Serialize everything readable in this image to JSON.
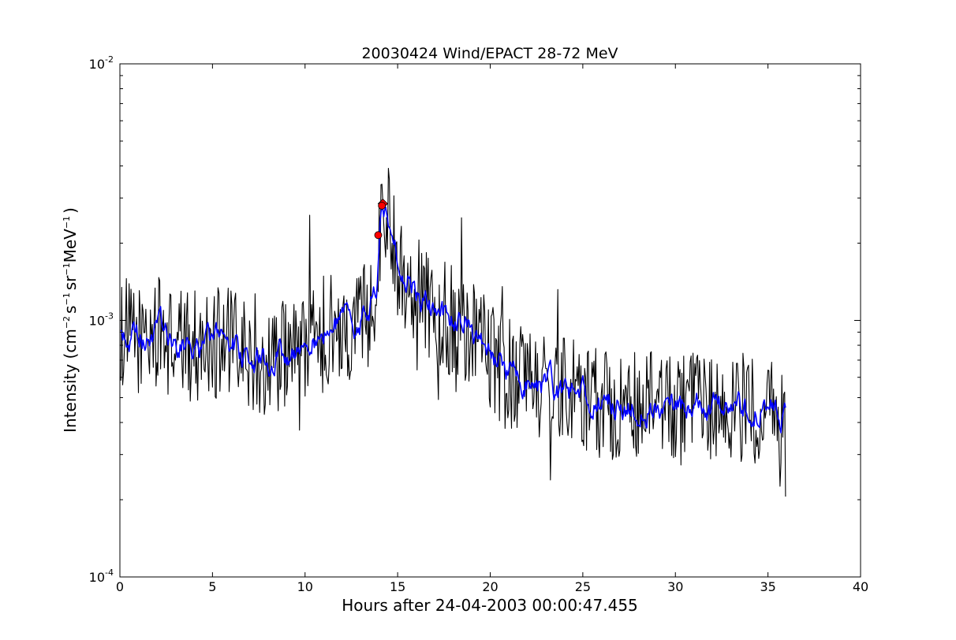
{
  "chart_data": {
    "type": "line",
    "title": "20030424 Wind/EPACT 28-72 MeV",
    "xlabel": "Hours after 24-04-2003 00:00:47.455",
    "ylabel": {
      "prefix": "Intensity (cm",
      "exp1": "−2",
      "mid1": "s",
      "exp2": "−1",
      "mid2": "sr",
      "exp3": "−1",
      "mid3": "MeV",
      "exp4": "−1",
      "suffix": ")"
    },
    "xlim": [
      0,
      40
    ],
    "ylim": [
      0.0001,
      0.01
    ],
    "yscale": "log",
    "grid": false,
    "x_ticks": [
      "0",
      "5",
      "10",
      "15",
      "20",
      "25",
      "30",
      "35",
      "40"
    ],
    "y_ticks": [
      {
        "base": "10",
        "exp": "-4",
        "value": 0.0001
      },
      {
        "base": "10",
        "exp": "-3",
        "value": 0.001
      },
      {
        "base": "10",
        "exp": "-2",
        "value": 0.01
      }
    ],
    "series": [
      {
        "color": "#000000",
        "style": "raw",
        "anchors": [
          [
            0,
            0.0009
          ],
          [
            1,
            0.00085
          ],
          [
            2,
            0.0009
          ],
          [
            3,
            0.0008
          ],
          [
            4,
            0.0008
          ],
          [
            5,
            0.00082
          ],
          [
            6,
            0.00082
          ],
          [
            7,
            0.0007
          ],
          [
            8,
            0.0007
          ],
          [
            9,
            0.00075
          ],
          [
            10,
            0.0008
          ],
          [
            11,
            0.0009
          ],
          [
            12,
            0.00095
          ],
          [
            13,
            0.001
          ],
          [
            13.5,
            0.0011
          ],
          [
            13.9,
            0.0015
          ],
          [
            14.1,
            0.0026
          ],
          [
            14.3,
            0.0028
          ],
          [
            14.6,
            0.0022
          ],
          [
            15,
            0.0017
          ],
          [
            15.5,
            0.0015
          ],
          [
            16,
            0.0013
          ],
          [
            17,
            0.0011
          ],
          [
            18,
            0.001
          ],
          [
            19,
            0.0009
          ],
          [
            20,
            0.00075
          ],
          [
            21,
            0.0006
          ],
          [
            22,
            0.0006
          ],
          [
            23,
            0.00055
          ],
          [
            24,
            0.00052
          ],
          [
            25,
            0.0005
          ],
          [
            26,
            0.00048
          ],
          [
            27,
            0.00047
          ],
          [
            28,
            0.00046
          ],
          [
            30,
            0.00045
          ],
          [
            32,
            0.00045
          ],
          [
            34,
            0.00045
          ],
          [
            35,
            0.00045
          ],
          [
            36,
            0.0004
          ]
        ],
        "noise_dex": 0.22,
        "floor": 0.000175,
        "x_start": 0.05,
        "x_end": 35.95,
        "step": 0.05
      },
      {
        "color": "#0000ff",
        "style": "smoothed",
        "anchors": [
          [
            0,
            0.0009
          ],
          [
            1,
            0.00085
          ],
          [
            2,
            0.0009
          ],
          [
            3,
            0.0008
          ],
          [
            4,
            0.0008
          ],
          [
            5,
            0.00082
          ],
          [
            6,
            0.00082
          ],
          [
            7,
            0.0007
          ],
          [
            8,
            0.0007
          ],
          [
            9,
            0.00075
          ],
          [
            10,
            0.0008
          ],
          [
            11,
            0.0009
          ],
          [
            12,
            0.00095
          ],
          [
            13,
            0.001
          ],
          [
            13.5,
            0.0011
          ],
          [
            13.9,
            0.0015
          ],
          [
            14.1,
            0.0026
          ],
          [
            14.3,
            0.0028
          ],
          [
            14.6,
            0.0022
          ],
          [
            15,
            0.0017
          ],
          [
            15.5,
            0.0015
          ],
          [
            16,
            0.0013
          ],
          [
            17,
            0.0011
          ],
          [
            18,
            0.001
          ],
          [
            19,
            0.0009
          ],
          [
            20,
            0.00075
          ],
          [
            21,
            0.0006
          ],
          [
            22,
            0.0006
          ],
          [
            23,
            0.00055
          ],
          [
            24,
            0.00052
          ],
          [
            25,
            0.0005
          ],
          [
            26,
            0.00048
          ],
          [
            27,
            0.00047
          ],
          [
            28,
            0.00046
          ],
          [
            30,
            0.00045
          ],
          [
            32,
            0.00045
          ],
          [
            34,
            0.00045
          ],
          [
            35,
            0.00045
          ],
          [
            36,
            0.0004
          ]
        ],
        "noise_dex": 0.07,
        "x_start": 0.05,
        "x_end": 35.95,
        "step": 0.05
      }
    ],
    "markers": [
      {
        "x": 13.95,
        "y": 0.00215,
        "color": "#ff0000",
        "shape": "circle"
      },
      {
        "x": 14.2,
        "y": 0.00285,
        "color": "#ff0000",
        "shape": "diamond"
      },
      {
        "x": 14.15,
        "y": 0.0028,
        "color": "#ff0000",
        "shape": "circle"
      }
    ]
  }
}
